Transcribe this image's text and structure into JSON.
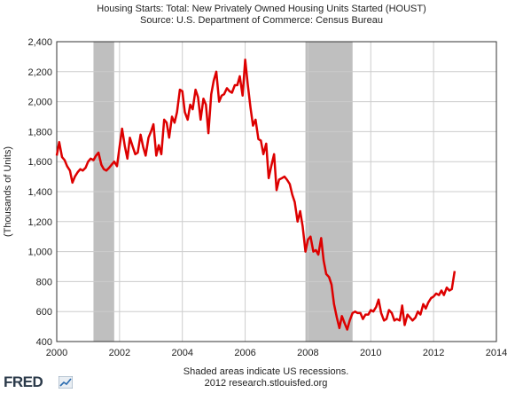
{
  "header": {
    "title": "Housing Starts: Total: New Privately Owned Housing Units Started (HOUST)",
    "source": "Source: U.S. Department of Commerce: Census Bureau"
  },
  "footer": {
    "note": "Shaded areas indicate US recessions.",
    "credit": "2012 research.stlouisfed.org",
    "logo_text": "FRED"
  },
  "colors": {
    "line": "#dd0000",
    "recession": "#bfbfbf",
    "grid": "#cccccc"
  },
  "chart_data": {
    "type": "line",
    "title": "Housing Starts: Total: New Privately Owned Housing Units Started (HOUST)",
    "ylabel": "(Thousands of Units)",
    "xlabel": "",
    "xlim": [
      2000,
      2014
    ],
    "ylim": [
      400,
      2400
    ],
    "xticks": [
      "2000",
      "2002",
      "2004",
      "2006",
      "2008",
      "2010",
      "2012",
      "2014"
    ],
    "yticks": [
      "400",
      "600",
      "800",
      "1,000",
      "1,200",
      "1,400",
      "1,600",
      "1,800",
      "2,000",
      "2,200",
      "2,400"
    ],
    "grid": true,
    "recessions": [
      [
        2001.17,
        2001.83
      ],
      [
        2007.92,
        2009.42
      ]
    ],
    "series": [
      {
        "x": [
          2000.0,
          2000.08,
          2000.17,
          2000.25,
          2000.33,
          2000.42,
          2000.5,
          2000.58,
          2000.67,
          2000.75,
          2000.83,
          2000.92,
          2001.0,
          2001.08,
          2001.17,
          2001.25,
          2001.33,
          2001.42,
          2001.5,
          2001.58,
          2001.67,
          2001.75,
          2001.83,
          2001.92,
          2002.0,
          2002.08,
          2002.17,
          2002.25,
          2002.33,
          2002.42,
          2002.5,
          2002.58,
          2002.67,
          2002.75,
          2002.83,
          2002.92,
          2003.0,
          2003.08,
          2003.17,
          2003.25,
          2003.33,
          2003.42,
          2003.5,
          2003.58,
          2003.67,
          2003.75,
          2003.83,
          2003.92,
          2004.0,
          2004.08,
          2004.17,
          2004.25,
          2004.33,
          2004.42,
          2004.5,
          2004.58,
          2004.67,
          2004.75,
          2004.83,
          2004.92,
          2005.0,
          2005.08,
          2005.17,
          2005.25,
          2005.33,
          2005.42,
          2005.5,
          2005.58,
          2005.67,
          2005.75,
          2005.83,
          2005.92,
          2006.0,
          2006.08,
          2006.17,
          2006.25,
          2006.33,
          2006.42,
          2006.5,
          2006.58,
          2006.67,
          2006.75,
          2006.83,
          2006.92,
          2007.0,
          2007.08,
          2007.17,
          2007.25,
          2007.33,
          2007.42,
          2007.5,
          2007.58,
          2007.67,
          2007.75,
          2007.83,
          2007.92,
          2008.0,
          2008.08,
          2008.17,
          2008.25,
          2008.33,
          2008.42,
          2008.5,
          2008.58,
          2008.67,
          2008.75,
          2008.83,
          2008.92,
          2009.0,
          2009.08,
          2009.17,
          2009.25,
          2009.33,
          2009.42,
          2009.5,
          2009.58,
          2009.67,
          2009.75,
          2009.83,
          2009.92,
          2010.0,
          2010.08,
          2010.17,
          2010.25,
          2010.33,
          2010.42,
          2010.5,
          2010.58,
          2010.67,
          2010.75,
          2010.83,
          2010.92,
          2011.0,
          2011.08,
          2011.17,
          2011.25,
          2011.33,
          2011.42,
          2011.5,
          2011.58,
          2011.67,
          2011.75,
          2011.83,
          2011.92,
          2012.0,
          2012.08,
          2012.17,
          2012.25,
          2012.33,
          2012.42,
          2012.5,
          2012.58,
          2012.67
        ],
        "y": [
          1640,
          1730,
          1630,
          1610,
          1570,
          1540,
          1460,
          1500,
          1530,
          1550,
          1540,
          1560,
          1600,
          1620,
          1610,
          1640,
          1660,
          1580,
          1550,
          1540,
          1560,
          1580,
          1600,
          1570,
          1700,
          1820,
          1700,
          1620,
          1760,
          1700,
          1650,
          1660,
          1780,
          1700,
          1640,
          1760,
          1800,
          1850,
          1640,
          1710,
          1650,
          1880,
          1860,
          1760,
          1900,
          1860,
          1930,
          2080,
          2070,
          1930,
          1880,
          1980,
          1950,
          2080,
          2030,
          1880,
          2020,
          1980,
          1790,
          2050,
          2140,
          2200,
          2000,
          2040,
          2050,
          2090,
          2070,
          2060,
          2110,
          2110,
          2170,
          2040,
          2280,
          2120,
          1960,
          1840,
          1880,
          1750,
          1740,
          1650,
          1720,
          1490,
          1570,
          1650,
          1410,
          1480,
          1490,
          1500,
          1480,
          1450,
          1380,
          1330,
          1200,
          1270,
          1170,
          1000,
          1080,
          1100,
          1000,
          1010,
          980,
          1090,
          940,
          850,
          830,
          780,
          650,
          560,
          490,
          570,
          520,
          480,
          540,
          590,
          600,
          590,
          590,
          550,
          580,
          580,
          610,
          600,
          630,
          680,
          590,
          540,
          550,
          610,
          590,
          540,
          550,
          540,
          640,
          510,
          580,
          560,
          540,
          560,
          600,
          580,
          650,
          620,
          660,
          690,
          700,
          720,
          710,
          740,
          710,
          760,
          740,
          750,
          870
        ]
      }
    ]
  }
}
